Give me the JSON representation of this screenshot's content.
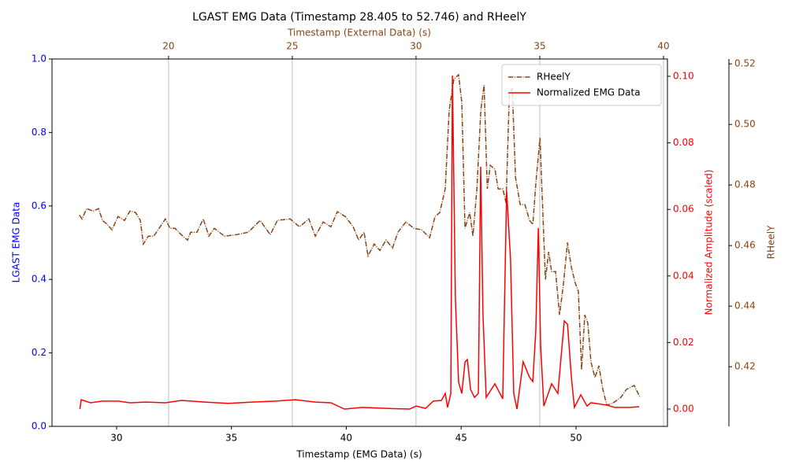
{
  "chart_data": {
    "type": "line",
    "title": "LGAST EMG Data (Timestamp 28.405 to 52.746) and RHeelY",
    "x_label": "Timestamp (EMG Data) (s)",
    "x2_label": "Timestamp (External Data) (s)",
    "y_label": "LGAST EMG Data",
    "y2_label": "Normalized Amplitude (scaled)",
    "y3_label": "RHeelY",
    "xlim": [
      27.19,
      53.98
    ],
    "xticks": [
      30,
      35,
      40,
      45,
      50
    ],
    "x2lim": [
      15.29,
      40.16
    ],
    "x2ticks": [
      20,
      25,
      30,
      35,
      40
    ],
    "ylim": [
      0,
      1
    ],
    "yticks": [
      {
        "value": 0,
        "label": "0.0"
      },
      0.2,
      0.4,
      0.6,
      0.8,
      {
        "value": 1,
        "label": "1.0"
      }
    ],
    "y2lim": [
      -0.0052,
      0.1052
    ],
    "y2ticks": [
      {
        "value": 0,
        "label": "0.00"
      },
      0.02,
      0.04,
      0.06,
      0.08,
      {
        "value": 0.1,
        "label": "0.10"
      }
    ],
    "y3lim": [
      0.4003,
      0.5216
    ],
    "y3ticks": [
      0.42,
      0.44,
      0.46,
      0.48,
      {
        "value": 0.5,
        "label": "0.50"
      },
      0.52
    ],
    "grid": "x2",
    "legend": "upper right",
    "series": [
      {
        "name": "RHeelY",
        "color": "#8b4513",
        "style": "dashdot",
        "axis": "y3",
        "xaxis": "x2",
        "x": [
          16.4,
          16.5,
          16.69,
          16.95,
          17.17,
          17.33,
          17.52,
          17.71,
          17.96,
          18.22,
          18.44,
          18.67,
          18.86,
          18.98,
          19.18,
          19.4,
          19.62,
          19.87,
          20.06,
          20.26,
          20.51,
          20.77,
          20.89,
          21.15,
          21.4,
          21.63,
          21.85,
          22.26,
          22.74,
          23.22,
          23.7,
          24.11,
          24.4,
          24.91,
          25.29,
          25.67,
          25.93,
          26.25,
          26.56,
          26.82,
          27.14,
          27.46,
          27.68,
          27.9,
          28.06,
          28.31,
          28.54,
          28.79,
          29.05,
          29.27,
          29.59,
          29.91,
          30.23,
          30.55,
          30.77,
          30.96,
          31.18,
          31.34,
          31.53,
          31.72,
          31.85,
          31.98,
          32.17,
          32.3,
          32.46,
          32.62,
          32.75,
          32.88,
          33.0,
          33.19,
          33.32,
          33.51,
          33.64,
          33.77,
          33.89,
          34.02,
          34.21,
          34.4,
          34.59,
          34.72,
          34.85,
          35.01,
          35.1,
          35.23,
          35.36,
          35.48,
          35.64,
          35.8,
          35.96,
          36.12,
          36.28,
          36.44,
          36.56,
          36.69,
          36.82,
          36.94,
          37.07,
          37.23,
          37.39,
          37.55,
          37.71,
          37.96,
          38.28,
          38.5,
          38.82,
          39.05
        ],
        "values": [
          0.4701,
          0.4688,
          0.4722,
          0.4714,
          0.4722,
          0.4683,
          0.467,
          0.4652,
          0.4696,
          0.4683,
          0.4714,
          0.4709,
          0.4683,
          0.4605,
          0.4631,
          0.4631,
          0.4657,
          0.4688,
          0.4657,
          0.4657,
          0.4636,
          0.4618,
          0.4644,
          0.4644,
          0.4688,
          0.4631,
          0.4657,
          0.4631,
          0.4636,
          0.4644,
          0.4683,
          0.4636,
          0.4683,
          0.4688,
          0.4662,
          0.4688,
          0.4631,
          0.4678,
          0.4662,
          0.4712,
          0.4696,
          0.4662,
          0.4618,
          0.4644,
          0.4566,
          0.4605,
          0.4584,
          0.4618,
          0.4592,
          0.4644,
          0.4678,
          0.4657,
          0.4652,
          0.4626,
          0.4696,
          0.4709,
          0.4787,
          0.5047,
          0.515,
          0.5164,
          0.5073,
          0.4657,
          0.4709,
          0.4631,
          0.4787,
          0.5047,
          0.513,
          0.4787,
          0.4865,
          0.4852,
          0.4787,
          0.4787,
          0.474,
          0.5099,
          0.512,
          0.4826,
          0.4735,
          0.4735,
          0.4683,
          0.467,
          0.4813,
          0.4956,
          0.4761,
          0.4488,
          0.4579,
          0.4514,
          0.4514,
          0.4371,
          0.4475,
          0.461,
          0.4527,
          0.4475,
          0.4449,
          0.419,
          0.4371,
          0.4345,
          0.4216,
          0.4164,
          0.4203,
          0.4125,
          0.4073,
          0.408,
          0.4099,
          0.4125,
          0.4138,
          0.4099
        ]
      },
      {
        "name": "Normalized EMG Data",
        "color": "#ff0000",
        "style": "solid",
        "axis": "y2",
        "xaxis": "x",
        "x": [
          28.405,
          28.46,
          28.87,
          29.39,
          30.07,
          30.59,
          31.27,
          32.13,
          32.82,
          33.85,
          34.87,
          35.9,
          36.93,
          37.79,
          38.65,
          39.33,
          39.92,
          40.71,
          41.74,
          42.76,
          43.04,
          43.45,
          43.79,
          44.14,
          44.31,
          44.41,
          44.55,
          44.62,
          44.75,
          44.89,
          45.03,
          45.17,
          45.27,
          45.41,
          45.58,
          45.75,
          45.85,
          45.95,
          46.09,
          46.47,
          46.81,
          46.98,
          47.15,
          47.29,
          47.43,
          47.7,
          47.98,
          48.12,
          48.25,
          48.36,
          48.46,
          48.6,
          48.94,
          49.21,
          49.49,
          49.63,
          49.8,
          49.93,
          50.21,
          50.48,
          50.65,
          51.34,
          51.68,
          52.37,
          52.746
        ],
        "values": [
          0.0,
          0.0028,
          0.0019,
          0.0024,
          0.0024,
          0.0019,
          0.0021,
          0.0019,
          0.0026,
          0.0021,
          0.0017,
          0.0021,
          0.0024,
          0.0028,
          0.0021,
          0.0019,
          0.0,
          0.0005,
          0.0002,
          0.0,
          0.0009,
          0.0002,
          0.0024,
          0.0026,
          0.0047,
          0.0005,
          0.0047,
          0.1002,
          0.0331,
          0.008,
          0.0047,
          0.0142,
          0.0149,
          0.0059,
          0.0035,
          0.0047,
          0.0728,
          0.0284,
          0.0035,
          0.0076,
          0.0031,
          0.0655,
          0.0449,
          0.0047,
          0.0,
          0.0142,
          0.0095,
          0.0083,
          0.0236,
          0.0544,
          0.0189,
          0.0009,
          0.0076,
          0.0047,
          0.0265,
          0.0255,
          0.0095,
          0.0005,
          0.0043,
          0.0009,
          0.0019,
          0.0012,
          0.0005,
          0.0005,
          0.0007
        ]
      }
    ]
  }
}
